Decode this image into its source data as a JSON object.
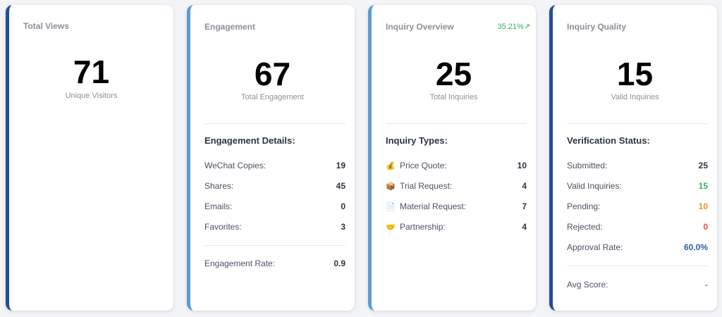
{
  "total_views": {
    "title": "Total Views",
    "value": "71",
    "sub_label": "Unique Visitors"
  },
  "engagement": {
    "title": "Engagement",
    "value": "67",
    "sub_label": "Total Engagement",
    "section_title": "Engagement Details:",
    "rows": [
      {
        "label": "WeChat Copies:",
        "value": "19"
      },
      {
        "label": "Shares:",
        "value": "45"
      },
      {
        "label": "Emails:",
        "value": "0"
      },
      {
        "label": "Favorites:",
        "value": "3"
      }
    ],
    "rate_label": "Engagement Rate:",
    "rate_value": "0.9"
  },
  "inquiry_overview": {
    "title": "Inquiry Overview",
    "trend": "35.21%↗",
    "value": "25",
    "sub_label": "Total Inquiries",
    "section_title": "Inquiry Types:",
    "rows": [
      {
        "icon": "money-bag-icon",
        "glyph": "💰",
        "label": "Price Quote:",
        "value": "10"
      },
      {
        "icon": "package-icon",
        "glyph": "📦",
        "label": "Trial Request:",
        "value": "4"
      },
      {
        "icon": "document-icon",
        "glyph": "📄",
        "label": "Material Request:",
        "value": "7"
      },
      {
        "icon": "handshake-icon",
        "glyph": "🤝",
        "label": "Partnership:",
        "value": "4"
      }
    ]
  },
  "inquiry_quality": {
    "title": "Inquiry Quality",
    "value": "15",
    "sub_label": "Valid Inquiries",
    "section_title": "Verification Status:",
    "rows": [
      {
        "label": "Submitted:",
        "value": "25",
        "color": "#2c3442"
      },
      {
        "label": "Valid Inquiries:",
        "value": "15",
        "color": "#2fb35f"
      },
      {
        "label": "Pending:",
        "value": "10",
        "color": "#f0932b"
      },
      {
        "label": "Rejected:",
        "value": "0",
        "color": "#e74c3c"
      },
      {
        "label": "Approval Rate:",
        "value": "60.0%",
        "color": "#2d5fa8"
      }
    ],
    "score_label": "Avg Score:",
    "score_value": "-"
  },
  "colors": {
    "accent_dark": "#1f4e9e",
    "accent_light": "#5b9bd5",
    "positive": "#2fb35f"
  }
}
